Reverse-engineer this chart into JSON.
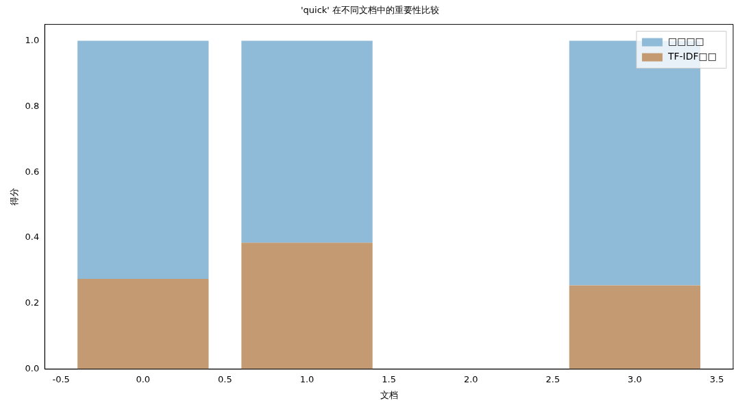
{
  "chart_data": {
    "type": "bar",
    "title": "'quick' 在不同文档中的重要性比较",
    "xlabel": "文档",
    "ylabel": "得分",
    "x": [
      0,
      1,
      2,
      3
    ],
    "series": [
      {
        "name": "TF-IDF□□",
        "color": "#c49a72",
        "values": [
          0.275,
          0.385,
          0,
          0.255
        ]
      },
      {
        "name": "□□□□",
        "color": "#8fbbd9",
        "values": [
          0.725,
          0.615,
          0,
          0.745
        ]
      }
    ],
    "stacked": true,
    "xlim": [
      -0.6,
      3.6
    ],
    "xticks": [
      {
        "value": -0.5,
        "label": "-0.5"
      },
      {
        "value": 0,
        "label": "0.0"
      },
      {
        "value": 0.5,
        "label": "0.5"
      },
      {
        "value": 1,
        "label": "1.0"
      },
      {
        "value": 1.5,
        "label": "1.5"
      },
      {
        "value": 2,
        "label": "2.0"
      },
      {
        "value": 2.5,
        "label": "2.5"
      },
      {
        "value": 3,
        "label": "3.0"
      },
      {
        "value": 3.5,
        "label": "3.5"
      }
    ],
    "ylim": [
      0,
      1.05
    ],
    "yticks": [
      {
        "value": 0,
        "label": "0.0"
      },
      {
        "value": 0.2,
        "label": "0.2"
      },
      {
        "value": 0.4,
        "label": "0.4"
      },
      {
        "value": 0.6,
        "label": "0.6"
      },
      {
        "value": 0.8,
        "label": "0.8"
      },
      {
        "value": 1,
        "label": "1.0"
      }
    ],
    "legend": "top right",
    "grid": false
  }
}
